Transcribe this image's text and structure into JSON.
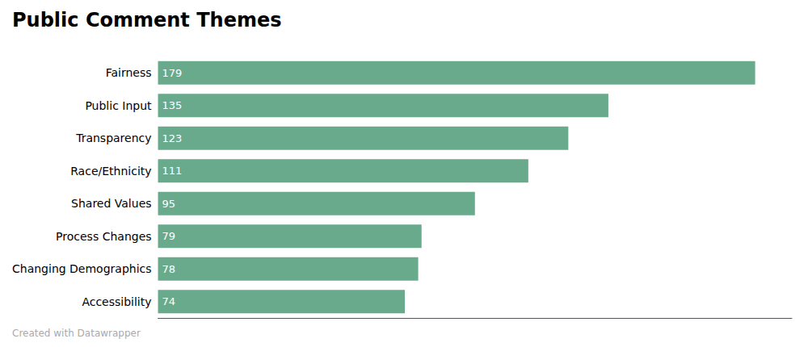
{
  "chart_data": {
    "type": "bar",
    "title": "Public Comment Themes",
    "categories": [
      "Fairness",
      "Public Input",
      "Transparency",
      "Race/Ethnicity",
      "Shared Values",
      "Process Changes",
      "Changing Demographics",
      "Accessibility"
    ],
    "values": [
      179,
      135,
      123,
      111,
      95,
      79,
      78,
      74
    ],
    "color": "#6aaa8c",
    "orientation": "horizontal",
    "xlim": [
      0,
      190
    ],
    "grid": false,
    "data_labels": true,
    "tick_labels": "y",
    "annotations": [
      "Created with Datawrapper"
    ]
  }
}
